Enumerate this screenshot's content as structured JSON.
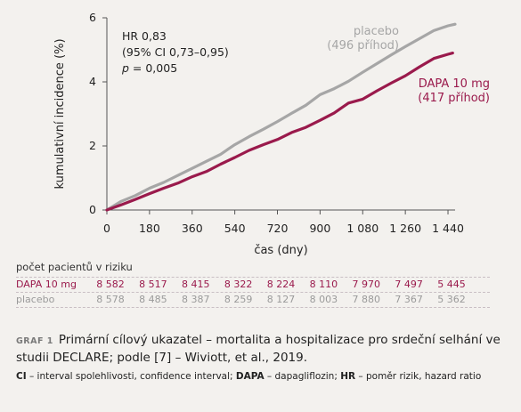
{
  "chart_data": {
    "type": "line",
    "xlabel": "čas (dny)",
    "ylabel": "kumulativní incidence (%)",
    "xlim": [
      0,
      1470
    ],
    "ylim": [
      0,
      6
    ],
    "x_ticks": [
      0,
      180,
      360,
      540,
      720,
      900,
      1080,
      1260,
      1440
    ],
    "x_tick_labels": [
      "0",
      "180",
      "360",
      "540",
      "720",
      "900",
      "1 080",
      "1 260",
      "1 440"
    ],
    "y_ticks": [
      0,
      2,
      4,
      6
    ],
    "y_tick_labels": [
      "0",
      "2",
      "4",
      "6"
    ],
    "series": [
      {
        "name": "placebo",
        "label_lines": [
          "placebo",
          "(496 příhod)"
        ],
        "color": "#a6a6a6",
        "x": [
          0,
          60,
          120,
          180,
          240,
          300,
          360,
          420,
          480,
          540,
          600,
          660,
          720,
          780,
          840,
          900,
          960,
          1020,
          1080,
          1140,
          1200,
          1260,
          1320,
          1380,
          1440,
          1470
        ],
        "y": [
          0,
          0.27,
          0.45,
          0.68,
          0.86,
          1.08,
          1.3,
          1.52,
          1.74,
          2.04,
          2.29,
          2.52,
          2.76,
          3.02,
          3.27,
          3.6,
          3.79,
          4.02,
          4.3,
          4.57,
          4.84,
          5.1,
          5.35,
          5.6,
          5.75,
          5.8
        ]
      },
      {
        "name": "DAPA 10 mg",
        "label_lines": [
          "DAPA 10 mg",
          "(417 příhod)"
        ],
        "color": "#9a1a4c",
        "x": [
          0,
          60,
          120,
          180,
          240,
          300,
          360,
          420,
          480,
          540,
          600,
          660,
          720,
          780,
          840,
          900,
          960,
          1020,
          1080,
          1140,
          1200,
          1260,
          1320,
          1380,
          1440,
          1460
        ],
        "y": [
          0,
          0.16,
          0.33,
          0.51,
          0.68,
          0.84,
          1.04,
          1.2,
          1.43,
          1.64,
          1.86,
          2.04,
          2.2,
          2.42,
          2.58,
          2.8,
          3.03,
          3.34,
          3.46,
          3.72,
          3.96,
          4.19,
          4.47,
          4.73,
          4.86,
          4.9
        ]
      }
    ],
    "annotation": [
      "HR 0,83",
      "(95% CI 0,73–0,95)",
      "p = 0,005"
    ]
  },
  "risk_table": {
    "title": "počet pacientů v riziku",
    "rows": [
      {
        "label": "DAPA 10 mg",
        "values": [
          "8 582",
          "8 517",
          "8 415",
          "8 322",
          "8 224",
          "8 110",
          "7 970",
          "7 497",
          "5 445"
        ]
      },
      {
        "label": "placebo",
        "values": [
          "8 578",
          "8 485",
          "8 387",
          "8 259",
          "8 127",
          "8 003",
          "7 880",
          "7 367",
          "5 362"
        ]
      }
    ]
  },
  "caption": {
    "tag": "GRAF 1",
    "text": "Primární cílový ukazatel – mortalita a hospitalizace pro srdeční selhání ve studii DECLARE; podle [7] – Wiviott, et al., 2019."
  },
  "abbreviations": [
    {
      "abbr": "CI",
      "text": " – interval spolehlivosti, confidence interval; "
    },
    {
      "abbr": "DAPA",
      "text": " – dapagliflozin; "
    },
    {
      "abbr": "HR",
      "text": " – poměr rizik, hazard ratio"
    }
  ],
  "colors": {
    "dapa": "#9a1a4c",
    "placebo": "#a6a6a6",
    "background": "#f3f1ee"
  }
}
